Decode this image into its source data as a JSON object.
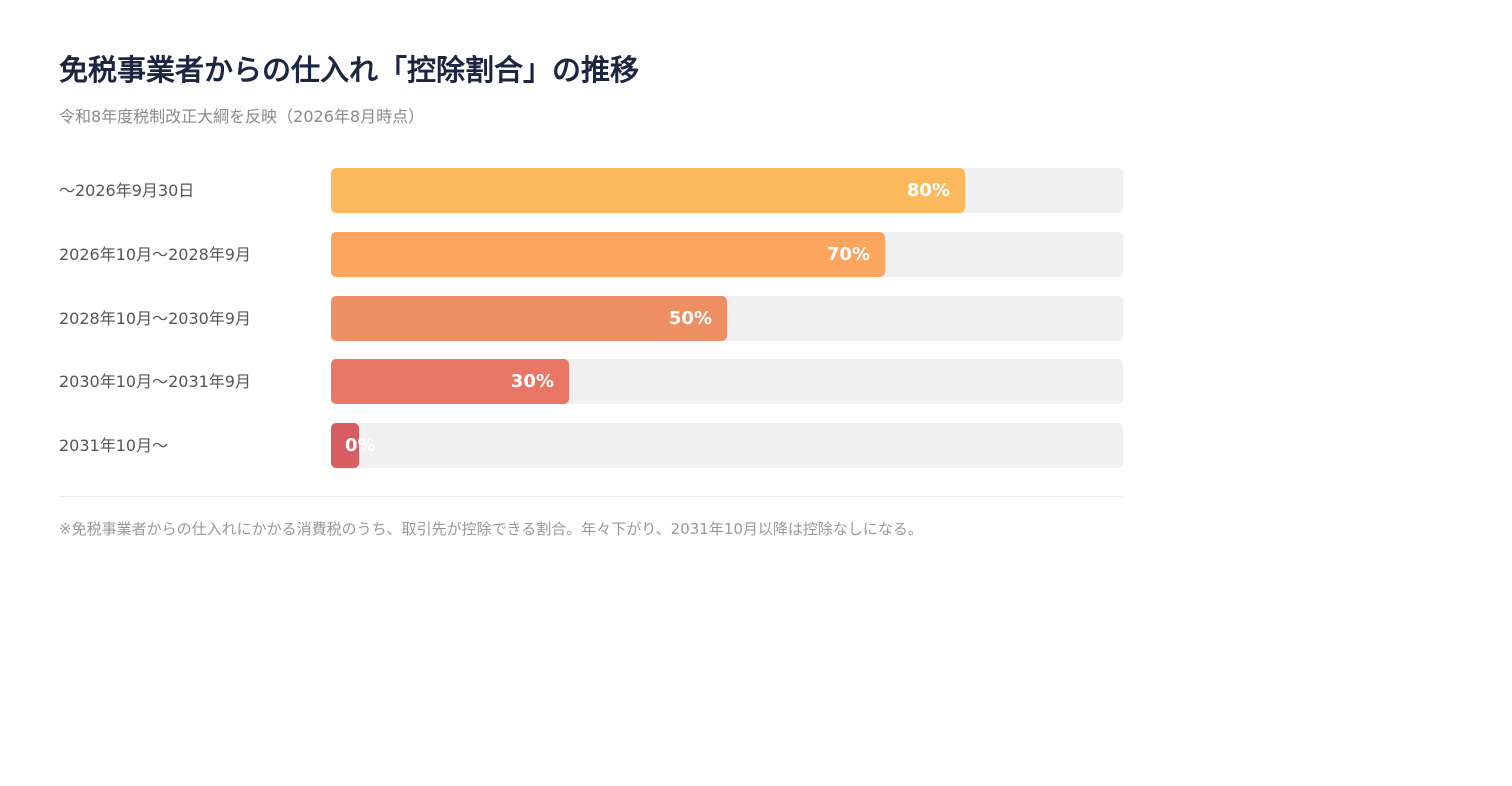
{
  "header": {
    "title": "免税事業者からの仕入れ「控除割合」の推移",
    "subtitle": "令和8年度税制改正大綱を反映（2026年8月時点）"
  },
  "chart_data": {
    "type": "bar",
    "orientation": "horizontal",
    "categories": [
      "〜2026年9月30日",
      "2026年10月〜2028年9月",
      "2028年10月〜2030年9月",
      "2030年10月〜2031年9月",
      "2031年10月〜"
    ],
    "values": [
      80,
      70,
      50,
      30,
      0
    ],
    "value_labels": [
      "80%",
      "70%",
      "50%",
      "30%",
      "0%"
    ],
    "ylim": [
      0,
      100
    ],
    "colors": [
      "#fbb95c",
      "#fba55f",
      "#ee8f63",
      "#e77665",
      "#d65e61"
    ],
    "grid": false
  },
  "footnote": "※免税事業者からの仕入れにかかる消費税のうち、取引先が控除できる割合。年々下がり、2031年10月以降は控除なしになる。"
}
